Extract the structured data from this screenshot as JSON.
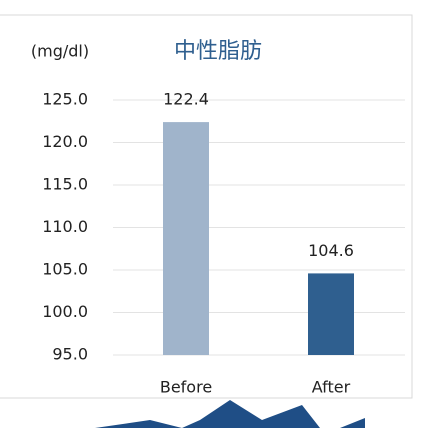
{
  "chart_data": {
    "type": "bar",
    "title": "中性脂肪",
    "y_label": "(mg/dl)",
    "categories": [
      "Before",
      "After"
    ],
    "values": [
      122.4,
      104.6
    ],
    "colors": [
      "#a0b4cb",
      "#2f5f8f"
    ],
    "ylim": [
      95,
      125
    ],
    "yticks": [
      {
        "value": 95,
        "label": "95.0"
      },
      {
        "value": 100,
        "label": "100.0"
      },
      {
        "value": 105,
        "label": "105.0"
      },
      {
        "value": 110,
        "label": "110.0"
      },
      {
        "value": 115,
        "label": "115.0"
      },
      {
        "value": 120,
        "label": "120.0"
      },
      {
        "value": 125,
        "label": "125.0"
      }
    ],
    "grid": true
  }
}
